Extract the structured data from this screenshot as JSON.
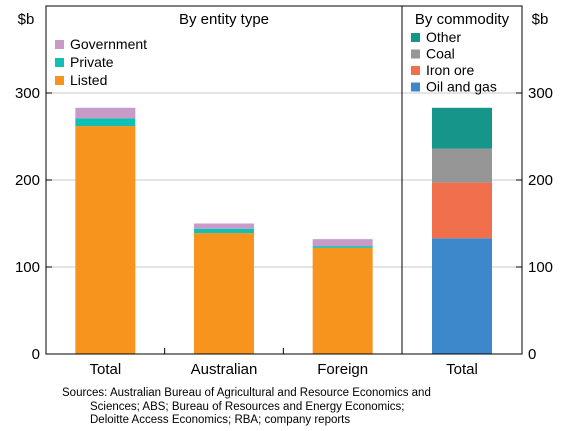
{
  "chart_data": [
    {
      "type": "bar",
      "stacked": true,
      "title": "By entity type",
      "ylabel_left": "$b",
      "categories": [
        "Total",
        "Australian",
        "Foreign"
      ],
      "series": [
        {
          "name": "Listed",
          "color": "#F7941D",
          "values": [
            262,
            139,
            122
          ]
        },
        {
          "name": "Private",
          "color": "#12BFB5",
          "values": [
            9,
            5,
            2
          ]
        },
        {
          "name": "Government",
          "color": "#C89AC8",
          "values": [
            12,
            6,
            8
          ]
        }
      ],
      "legend_order": [
        "Government",
        "Private",
        "Listed"
      ],
      "ylim": [
        0,
        400
      ],
      "yticks": [
        "0",
        "100",
        "200",
        "300"
      ],
      "grid": true,
      "legend_position": "top-left"
    },
    {
      "type": "bar",
      "stacked": true,
      "title": "By commodity",
      "ylabel_right": "$b",
      "categories": [
        "Total"
      ],
      "series": [
        {
          "name": "Oil and gas",
          "color": "#3D87CB",
          "values": [
            133
          ]
        },
        {
          "name": "Iron ore",
          "color": "#F0704E",
          "values": [
            64
          ]
        },
        {
          "name": "Coal",
          "color": "#969696",
          "values": [
            39
          ]
        },
        {
          "name": "Other",
          "color": "#16958A",
          "values": [
            47
          ]
        }
      ],
      "legend_order": [
        "Other",
        "Coal",
        "Iron ore",
        "Oil and gas"
      ],
      "ylim": [
        0,
        400
      ],
      "yticks": [
        "0",
        "100",
        "200",
        "300"
      ],
      "grid": true,
      "legend_position": "top"
    }
  ],
  "sources": {
    "line1": "Sources: Australian Bureau of Agricultural and Resource Economics and",
    "line2": "Sciences; ABS; Bureau of Resources and Energy Economics;",
    "line3": "Deloitte Access Economics; RBA; company reports"
  }
}
